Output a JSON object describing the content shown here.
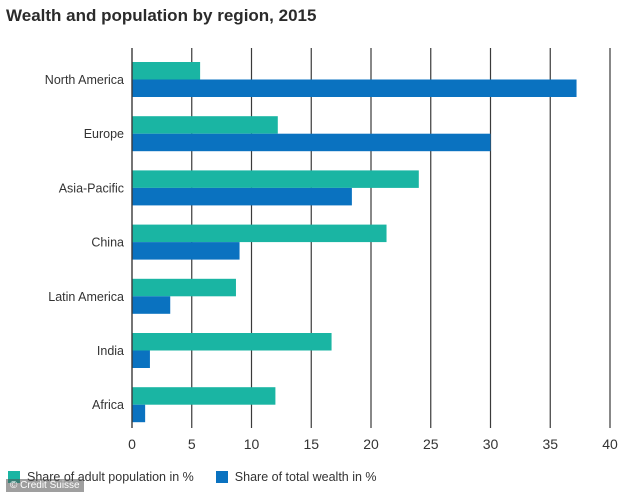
{
  "chart_data": {
    "type": "bar",
    "orientation": "horizontal",
    "title": "Wealth and population by region, 2015",
    "categories": [
      "North America",
      "Europe",
      "Asia-Pacific",
      "China",
      "Latin America",
      "India",
      "Africa"
    ],
    "series": [
      {
        "name": "Share of adult population in %",
        "color": "#1ab5a3",
        "values": [
          5.7,
          12.2,
          24,
          21.3,
          8.7,
          16.7,
          12
        ]
      },
      {
        "name": "Share of total wealth in %",
        "color": "#0a72c0",
        "values": [
          37.2,
          30,
          18.4,
          9,
          3.2,
          1.5,
          1.1
        ]
      }
    ],
    "xlim": [
      0,
      40
    ],
    "xticks": [
      "0",
      "5",
      "10",
      "15",
      "20",
      "25",
      "30",
      "35",
      "40"
    ],
    "grid": "vertical",
    "legend_position": "bottom",
    "xlabel": "",
    "ylabel": ""
  },
  "watermark": "© Credit Suisse"
}
